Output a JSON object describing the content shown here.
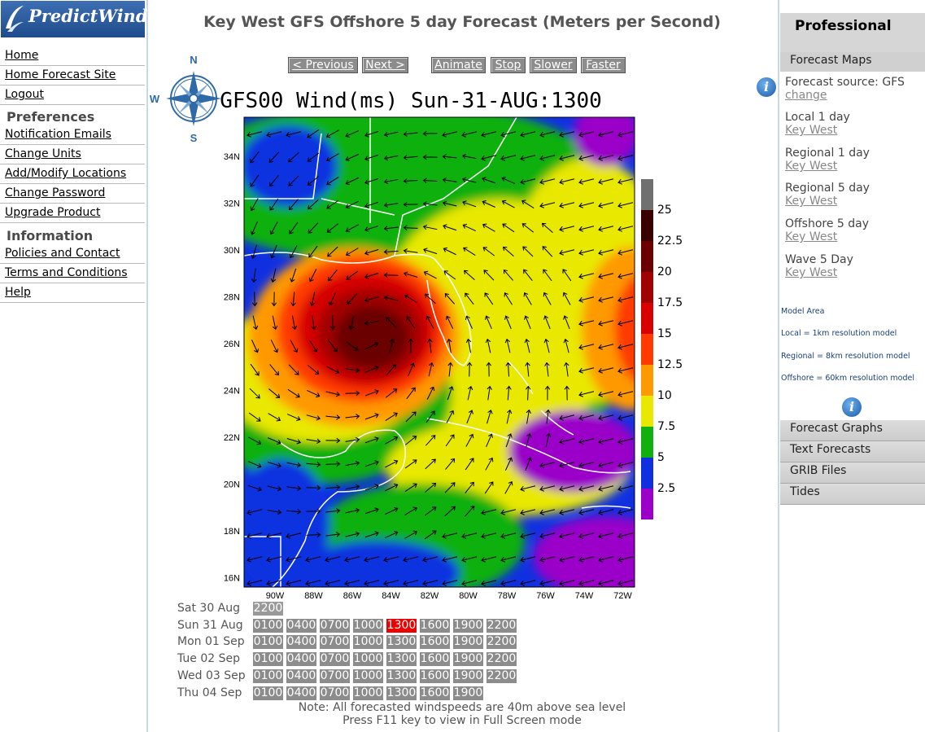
{
  "logo_text": "PredictWind",
  "nav": {
    "links1": [
      "Home",
      "Home Forecast Site",
      "Logout"
    ],
    "preferences_heading": "Preferences",
    "links2": [
      "Notification Emails",
      "Change Units",
      "Add/Modify Locations",
      "Change Password",
      "Upgrade Product"
    ],
    "information_heading": "Information",
    "links3": [
      "Policies and Contact",
      "Terms and Conditions",
      "Help"
    ]
  },
  "page_title": "Key West GFS Offshore 5 day Forecast (Meters per Second)",
  "controls": {
    "previous": "< Previous",
    "next": "Next >",
    "animate": "Animate",
    "stop": "Stop",
    "slower": "Slower",
    "faster": "Faster"
  },
  "compass": {
    "n": "N",
    "s": "S",
    "w": "W"
  },
  "map": {
    "title": "GFS00 Wind(ms) Sun-31-AUG:1300",
    "lat_labels": [
      "34N",
      "32N",
      "30N",
      "28N",
      "26N",
      "24N",
      "22N",
      "20N",
      "18N",
      "16N"
    ],
    "lon_labels": [
      "90W",
      "88W",
      "86W",
      "84W",
      "82W",
      "80W",
      "78W",
      "76W",
      "74W",
      "72W"
    ],
    "legend_values": [
      "25",
      "22.5",
      "20",
      "17.5",
      "15",
      "12.5",
      "10",
      "7.5",
      "5",
      "2.5"
    ],
    "legend_colors": [
      "#707070",
      "#3a0000",
      "#6b0000",
      "#a00000",
      "#d60000",
      "#ff3a00",
      "#ff9900",
      "#e8e800",
      "#10b010",
      "#1030e0",
      "#9a00c8"
    ]
  },
  "schedule": [
    {
      "day": "Sat 30 Aug",
      "hours": [
        "2200"
      ],
      "selected": -1,
      "disabled": [
        0
      ]
    },
    {
      "day": "Sun 31 Aug",
      "hours": [
        "0100",
        "0400",
        "0700",
        "1000",
        "1300",
        "1600",
        "1900",
        "2200"
      ],
      "selected": 4,
      "disabled": []
    },
    {
      "day": "Mon 01 Sep",
      "hours": [
        "0100",
        "0400",
        "0700",
        "1000",
        "1300",
        "1600",
        "1900",
        "2200"
      ],
      "selected": -1,
      "disabled": []
    },
    {
      "day": "Tue 02 Sep",
      "hours": [
        "0100",
        "0400",
        "0700",
        "1000",
        "1300",
        "1600",
        "1900",
        "2200"
      ],
      "selected": -1,
      "disabled": []
    },
    {
      "day": "Wed 03 Sep",
      "hours": [
        "0100",
        "0400",
        "0700",
        "1000",
        "1300",
        "1600",
        "1900",
        "2200"
      ],
      "selected": -1,
      "disabled": []
    },
    {
      "day": "Thu 04 Sep",
      "hours": [
        "0100",
        "0400",
        "0700",
        "1000",
        "1300",
        "1600",
        "1900"
      ],
      "selected": -1,
      "disabled": []
    }
  ],
  "note": {
    "line1": "Note: All forecasted windspeeds are 40m above sea level",
    "line2": "Press F11 key to view in Full Screen mode"
  },
  "right": {
    "professional": "Professional",
    "forecast_maps": "Forecast Maps",
    "source_label": "Forecast source: GFS",
    "change": "change",
    "models": [
      {
        "name": "Local 1 day",
        "loc": "Key West"
      },
      {
        "name": "Regional 1 day",
        "loc": "Key West"
      },
      {
        "name": "Regional 5 day",
        "loc": "Key West"
      },
      {
        "name": "Offshore 5 day",
        "loc": "Key West"
      },
      {
        "name": "Wave 5 Day",
        "loc": "Key West"
      }
    ],
    "model_area": "Model Area",
    "local_res": "Local = 1km resolution model",
    "regional_res": "Regional = 8km resolution model",
    "offshore_res": "Offshore = 60km resolution model",
    "info_glyph": "i",
    "tabs": [
      "Forecast Graphs",
      "Text Forecasts",
      "GRIB Files",
      "Tides"
    ]
  }
}
